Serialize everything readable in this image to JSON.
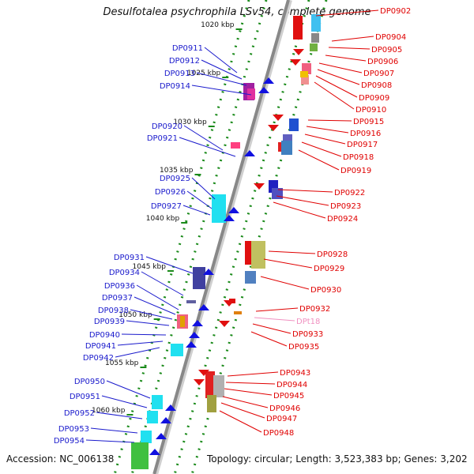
{
  "title": "Desulfotalea psychrophila LSv54, complete genome",
  "footer": {
    "accession": "Accession: NC_006138",
    "topology": "Topology: circular; Length: 3,523,383 bp; Genes: 3,202"
  },
  "colors": {
    "left_label": "#1a1acc",
    "right_label": "#e00000",
    "trna_label": "#f090c0",
    "backbone": "#888888",
    "tick": "#1a8a1a"
  },
  "kbp_marks": [
    "1020 kbp",
    "1025 kbp",
    "1030 kbp",
    "1035 kbp",
    "1040 kbp",
    "1045 kbp",
    "1050 kbp",
    "1055 kbp",
    "1060 kbp"
  ],
  "left_genes": [
    "DP0911",
    "DP0912",
    "DP0913",
    "DP0914",
    "DP0920",
    "DP0921",
    "DP0925",
    "DP0926",
    "DP0927",
    "DP0931",
    "DP0934",
    "DP0936",
    "DP0937",
    "DP0938",
    "DP0939",
    "DP0940",
    "DP0941",
    "DP0942",
    "DP0950",
    "DP0951",
    "DP0952",
    "DP0953",
    "DP0954"
  ],
  "right_genes": [
    "DP0902",
    "DP0904",
    "DP0905",
    "DP0906",
    "DP0907",
    "DP0908",
    "DP0909",
    "DP0910",
    "DP0915",
    "DP0916",
    "DP0917",
    "DP0918",
    "DP0919",
    "DP0922",
    "DP0923",
    "DP0924",
    "DP0928",
    "DP0929",
    "DP0930",
    "DP0932",
    "DPt18",
    "DP0933",
    "DP0935",
    "DP0943",
    "DP0944",
    "DP0945",
    "DP0946",
    "DP0947",
    "DP0948"
  ]
}
